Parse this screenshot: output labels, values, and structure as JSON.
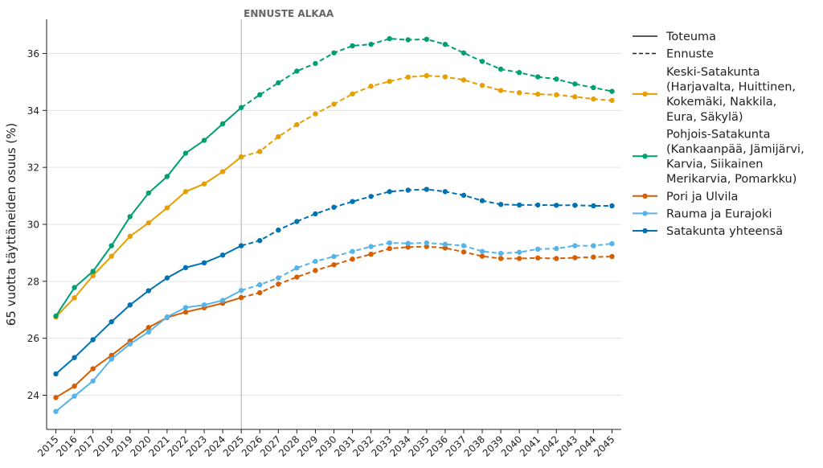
{
  "chart_data": {
    "type": "line",
    "title": "",
    "xlabel": "",
    "ylabel": "65 vuotta täyttäneiden osuus (%)",
    "ylim": [
      22.8,
      37.2
    ],
    "yticks": [
      24,
      26,
      28,
      30,
      32,
      34,
      36
    ],
    "grid": "horizontal",
    "legend_position": "right",
    "forecast_start_year": 2025,
    "forecast_label": "ENNUSTE ALKAA",
    "x": [
      2015,
      2016,
      2017,
      2018,
      2019,
      2020,
      2021,
      2022,
      2023,
      2024,
      2025,
      2026,
      2027,
      2028,
      2029,
      2030,
      2031,
      2032,
      2033,
      2034,
      2035,
      2036,
      2037,
      2038,
      2039,
      2040,
      2041,
      2042,
      2043,
      2044,
      2045
    ],
    "legend_style": [
      {
        "name": "Toteuma",
        "dash": "solid"
      },
      {
        "name": "Ennuste",
        "dash": "dashed"
      }
    ],
    "series": [
      {
        "name": "Keski-Satakunta (Harjavalta, Huittinen, Kokemäki, Nakkila, Eura, Säkylä)",
        "legend_lines": [
          "Keski-Satakunta",
          "(Harjavalta, Huittinen,",
          "Kokemäki, Nakkila,",
          "Eura, Säkylä)"
        ],
        "color": "#E69F00",
        "values": [
          26.75,
          27.42,
          28.2,
          28.88,
          29.58,
          30.05,
          30.58,
          31.15,
          31.42,
          31.85,
          32.37,
          32.56,
          33.08,
          33.5,
          33.88,
          34.22,
          34.58,
          34.85,
          35.02,
          35.17,
          35.22,
          35.18,
          35.07,
          34.88,
          34.7,
          34.62,
          34.57,
          34.55,
          34.48,
          34.4,
          34.35
        ]
      },
      {
        "name": "Pohjois-Satakunta (Kankaanpää, Jämijärvi, Karvia, Siikainen Merikarvia, Pomarkku)",
        "legend_lines": [
          "Pohjois-Satakunta",
          "(Kankaanpää, Jämijärvi,",
          "Karvia, Siikainen",
          "Merikarvia, Pomarkku)"
        ],
        "color": "#009E73",
        "values": [
          26.78,
          27.78,
          28.35,
          29.25,
          30.27,
          31.1,
          31.68,
          32.5,
          32.95,
          33.53,
          34.1,
          34.55,
          34.97,
          35.38,
          35.65,
          36.02,
          36.27,
          36.32,
          36.52,
          36.48,
          36.5,
          36.32,
          36.02,
          35.72,
          35.45,
          35.33,
          35.18,
          35.1,
          34.93,
          34.8,
          34.67
        ]
      },
      {
        "name": "Pori ja Ulvila",
        "legend_lines": [
          "Pori ja Ulvila"
        ],
        "color": "#D55E00",
        "values": [
          23.92,
          24.32,
          24.93,
          25.4,
          25.9,
          26.38,
          26.73,
          26.92,
          27.07,
          27.23,
          27.43,
          27.6,
          27.9,
          28.15,
          28.38,
          28.58,
          28.78,
          28.95,
          29.15,
          29.2,
          29.22,
          29.17,
          29.03,
          28.88,
          28.8,
          28.8,
          28.82,
          28.8,
          28.83,
          28.85,
          28.87
        ]
      },
      {
        "name": "Rauma ja Eurajoki",
        "legend_lines": [
          "Rauma ja Eurajoki"
        ],
        "color": "#56B4E9",
        "values": [
          23.43,
          23.97,
          24.5,
          25.27,
          25.8,
          26.22,
          26.75,
          27.08,
          27.17,
          27.33,
          27.68,
          27.88,
          28.12,
          28.47,
          28.7,
          28.87,
          29.05,
          29.22,
          29.35,
          29.33,
          29.35,
          29.3,
          29.25,
          29.05,
          28.98,
          29.02,
          29.13,
          29.15,
          29.25,
          29.25,
          29.32
        ]
      },
      {
        "name": "Satakunta yhteensä",
        "legend_lines": [
          "Satakunta yhteensä"
        ],
        "color": "#0072B2",
        "values": [
          24.75,
          25.32,
          25.95,
          26.58,
          27.17,
          27.67,
          28.12,
          28.48,
          28.65,
          28.92,
          29.25,
          29.43,
          29.8,
          30.1,
          30.37,
          30.6,
          30.8,
          30.98,
          31.15,
          31.2,
          31.23,
          31.15,
          31.02,
          30.83,
          30.7,
          30.68,
          30.68,
          30.67,
          30.67,
          30.65,
          30.65
        ]
      }
    ]
  }
}
